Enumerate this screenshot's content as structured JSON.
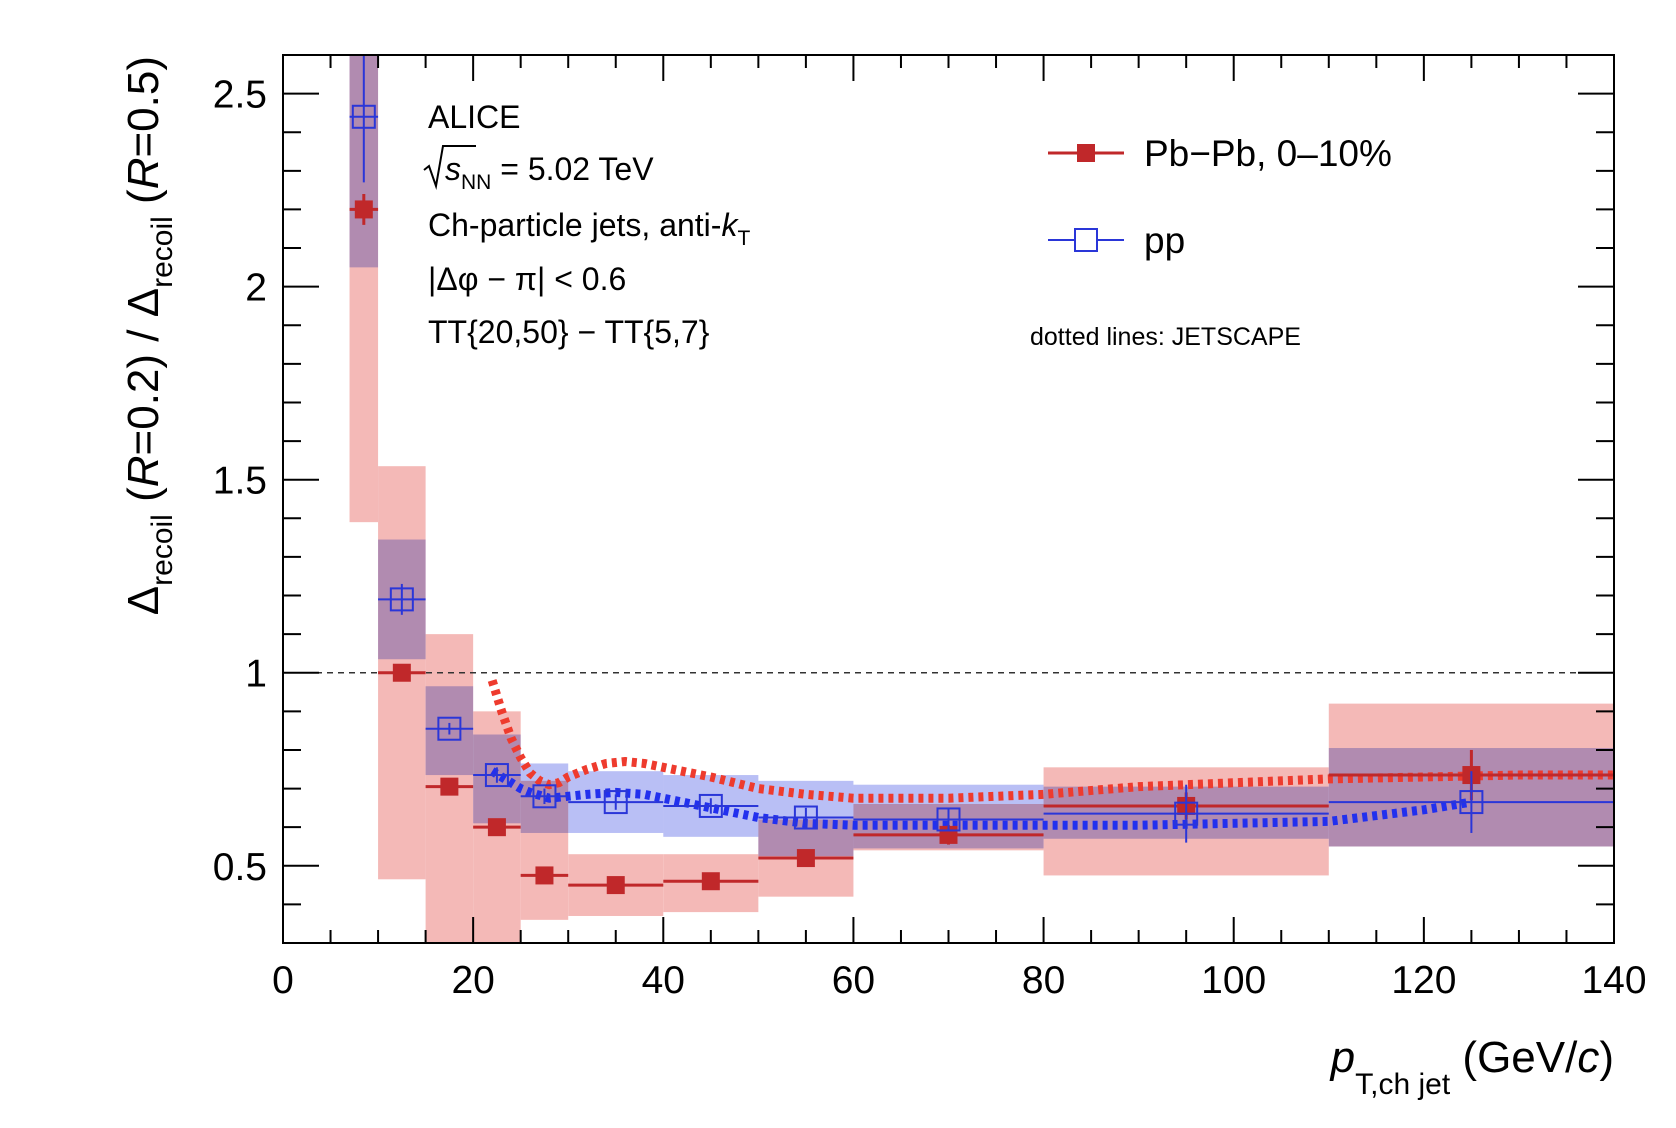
{
  "chart_data": {
    "type": "scatter",
    "xlim": [
      0,
      140
    ],
    "ylim": [
      0.3,
      2.6
    ],
    "x_ticks": [
      0,
      20,
      40,
      60,
      80,
      100,
      120,
      140
    ],
    "x_tick_labels": [
      "0",
      "20",
      "40",
      "60",
      "80",
      "100",
      "120",
      "140"
    ],
    "y_ticks": [
      0.5,
      1,
      1.5,
      2,
      2.5
    ],
    "y_tick_labels": [
      "0.5",
      "1",
      "1.5",
      "2",
      "2.5"
    ],
    "xlabel": {
      "main": "p",
      "sub": "T,ch jet",
      "unit_open": " (GeV/",
      "unit_c": "c",
      "unit_close": ")"
    },
    "ylabel": {
      "delta": "Δ",
      "sub_recoil": "recoil",
      "part1": " (",
      "r1": "R",
      "eq1": "=0.2) / ",
      "part2": " (",
      "r2": "R",
      "eq2": "=0.5)"
    },
    "reference_line": 1,
    "annotations": {
      "experiment": "ALICE",
      "energy": {
        "s": "s",
        "sub": "NN",
        "rest": " = 5.02 TeV"
      },
      "jets": {
        "text": "Ch-particle jets, anti-",
        "k": "k",
        "sub": "T"
      },
      "dphi": "|Δφ − π| < 0.6",
      "tt": "TT{20,50} − TT{5,7}",
      "model_note": "dotted lines: JETSCAPE"
    },
    "legend": {
      "placement": "top-right"
    },
    "series": [
      {
        "name": "Pb−Pb, 0–10%",
        "color": "#c0282a",
        "sys_color": "#f4b9b7",
        "marker": "filled-square",
        "points": [
          {
            "x": 8.5,
            "y": 2.2,
            "xlo": 7,
            "xhi": 10,
            "stat": 0.04,
            "sys_lo": 1.39,
            "sys_hi": 2.6
          },
          {
            "x": 12.5,
            "y": 1.0,
            "xlo": 10,
            "xhi": 15,
            "stat": 0.01,
            "sys_lo": 0.465,
            "sys_hi": 1.535
          },
          {
            "x": 17.5,
            "y": 0.705,
            "xlo": 15,
            "xhi": 20,
            "stat": 0.015,
            "sys_lo": 0.3,
            "sys_hi": 1.1
          },
          {
            "x": 22.5,
            "y": 0.6,
            "xlo": 20,
            "xhi": 25,
            "stat": 0.015,
            "sys_lo": 0.3,
            "sys_hi": 0.9
          },
          {
            "x": 27.5,
            "y": 0.475,
            "xlo": 25,
            "xhi": 30,
            "stat": 0.015,
            "sys_lo": 0.36,
            "sys_hi": 0.72
          },
          {
            "x": 35,
            "y": 0.45,
            "xlo": 30,
            "xhi": 40,
            "stat": 0.01,
            "sys_lo": 0.37,
            "sys_hi": 0.53
          },
          {
            "x": 45,
            "y": 0.46,
            "xlo": 40,
            "xhi": 50,
            "stat": 0.01,
            "sys_lo": 0.38,
            "sys_hi": 0.53
          },
          {
            "x": 55,
            "y": 0.52,
            "xlo": 50,
            "xhi": 60,
            "stat": 0.015,
            "sys_lo": 0.42,
            "sys_hi": 0.62
          },
          {
            "x": 70,
            "y": 0.58,
            "xlo": 60,
            "xhi": 80,
            "stat": 0.025,
            "sys_lo": 0.54,
            "sys_hi": 0.66
          },
          {
            "x": 95,
            "y": 0.655,
            "xlo": 80,
            "xhi": 110,
            "stat": 0.035,
            "sys_lo": 0.475,
            "sys_hi": 0.755
          },
          {
            "x": 125,
            "y": 0.735,
            "xlo": 110,
            "xhi": 140,
            "stat": 0.065,
            "sys_lo": 0.55,
            "sys_hi": 0.92
          }
        ],
        "jetscape": {
          "x": [
            22,
            23,
            24,
            25,
            26,
            27,
            28,
            29,
            30,
            32,
            34,
            36,
            38,
            40,
            45,
            50,
            55,
            60,
            65,
            70,
            75,
            80,
            90,
            100,
            110,
            120,
            130,
            140
          ],
          "y": [
            0.98,
            0.9,
            0.83,
            0.78,
            0.74,
            0.72,
            0.71,
            0.715,
            0.73,
            0.75,
            0.765,
            0.77,
            0.765,
            0.755,
            0.73,
            0.7,
            0.685,
            0.675,
            0.675,
            0.675,
            0.68,
            0.685,
            0.705,
            0.715,
            0.725,
            0.73,
            0.735,
            0.735
          ]
        }
      },
      {
        "name": "pp",
        "color": "#2a36d8",
        "sys_color": "#b9bff5",
        "marker": "open-square",
        "points": [
          {
            "x": 8.5,
            "y": 2.44,
            "xlo": 7,
            "xhi": 10,
            "stat": 0.17,
            "sys_lo": 2.05,
            "sys_hi": 2.6
          },
          {
            "x": 12.5,
            "y": 1.19,
            "xlo": 10,
            "xhi": 15,
            "stat": 0.04,
            "sys_lo": 1.035,
            "sys_hi": 1.345
          },
          {
            "x": 17.5,
            "y": 0.855,
            "xlo": 15,
            "xhi": 20,
            "stat": 0.015,
            "sys_lo": 0.735,
            "sys_hi": 0.965
          },
          {
            "x": 22.5,
            "y": 0.735,
            "xlo": 20,
            "xhi": 25,
            "stat": 0.02,
            "sys_lo": 0.61,
            "sys_hi": 0.84
          },
          {
            "x": 27.5,
            "y": 0.68,
            "xlo": 25,
            "xhi": 30,
            "stat": 0.02,
            "sys_lo": 0.585,
            "sys_hi": 0.765
          },
          {
            "x": 35,
            "y": 0.665,
            "xlo": 30,
            "xhi": 40,
            "stat": 0.02,
            "sys_lo": 0.585,
            "sys_hi": 0.745
          },
          {
            "x": 45,
            "y": 0.655,
            "xlo": 40,
            "xhi": 50,
            "stat": 0.02,
            "sys_lo": 0.575,
            "sys_hi": 0.735
          },
          {
            "x": 55,
            "y": 0.625,
            "xlo": 50,
            "xhi": 60,
            "stat": 0.025,
            "sys_lo": 0.525,
            "sys_hi": 0.72
          },
          {
            "x": 70,
            "y": 0.62,
            "xlo": 60,
            "xhi": 80,
            "stat": 0.03,
            "sys_lo": 0.545,
            "sys_hi": 0.71
          },
          {
            "x": 95,
            "y": 0.635,
            "xlo": 80,
            "xhi": 110,
            "stat": 0.075,
            "sys_lo": 0.57,
            "sys_hi": 0.705
          },
          {
            "x": 125,
            "y": 0.665,
            "xlo": 110,
            "xhi": 140,
            "stat": 0.08,
            "sys_lo": 0.55,
            "sys_hi": 0.805
          }
        ],
        "jetscape": {
          "x": [
            22,
            23,
            24,
            25,
            26,
            28,
            30,
            32,
            35,
            38,
            40,
            45,
            50,
            55,
            60,
            65,
            70,
            80,
            90,
            100,
            110,
            115,
            120,
            125
          ],
          "y": [
            0.745,
            0.73,
            0.715,
            0.7,
            0.69,
            0.675,
            0.68,
            0.685,
            0.69,
            0.685,
            0.675,
            0.65,
            0.625,
            0.61,
            0.605,
            0.605,
            0.605,
            0.605,
            0.605,
            0.61,
            0.615,
            0.63,
            0.645,
            0.665
          ]
        }
      }
    ]
  }
}
